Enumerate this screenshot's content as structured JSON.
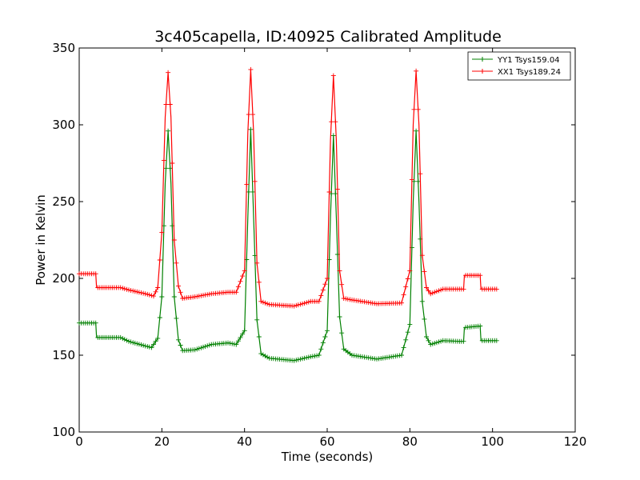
{
  "chart_data": {
    "type": "line",
    "title": "3c405capella, ID:40925 Calibrated Amplitude",
    "xlabel": "Time (seconds)",
    "ylabel": "Power in Kelvin",
    "xlim": [
      0,
      120
    ],
    "ylim": [
      100,
      350
    ],
    "xticks": [
      0,
      20,
      40,
      60,
      80,
      100,
      120
    ],
    "yticks": [
      100,
      150,
      200,
      250,
      300,
      350
    ],
    "grid": false,
    "legend_position": "top-right",
    "series": [
      {
        "name": "YY1 Tsys159.04",
        "color": "#008000",
        "marker": "+",
        "points": [
          [
            0,
            171
          ],
          [
            4,
            171
          ],
          [
            4.2,
            161.5
          ],
          [
            10,
            161.5
          ],
          [
            12,
            159
          ],
          [
            16,
            156
          ],
          [
            17.5,
            155
          ],
          [
            19,
            161
          ],
          [
            20,
            188
          ],
          [
            20.8,
            262
          ],
          [
            21.5,
            296
          ],
          [
            22.2,
            262
          ],
          [
            23,
            188
          ],
          [
            24,
            160
          ],
          [
            25,
            153
          ],
          [
            28,
            153.5
          ],
          [
            32,
            157
          ],
          [
            36,
            158
          ],
          [
            38,
            157
          ],
          [
            40,
            166
          ],
          [
            40.8,
            240
          ],
          [
            41.5,
            297
          ],
          [
            42.2,
            240
          ],
          [
            43,
            173
          ],
          [
            44,
            151
          ],
          [
            46,
            148
          ],
          [
            52,
            146.5
          ],
          [
            56,
            149
          ],
          [
            58,
            150
          ],
          [
            60,
            166
          ],
          [
            60.8,
            240
          ],
          [
            61.5,
            293
          ],
          [
            62.2,
            240
          ],
          [
            63,
            175
          ],
          [
            64,
            154
          ],
          [
            66,
            150
          ],
          [
            72,
            147.5
          ],
          [
            78,
            150
          ],
          [
            80,
            170
          ],
          [
            80.8,
            250
          ],
          [
            81.5,
            296
          ],
          [
            82.2,
            250
          ],
          [
            83,
            185
          ],
          [
            84,
            162
          ],
          [
            85,
            157
          ],
          [
            88,
            159.5
          ],
          [
            92,
            159
          ],
          [
            93,
            159
          ],
          [
            93.2,
            168
          ],
          [
            97,
            169
          ],
          [
            97.2,
            159.5
          ],
          [
            101,
            159.5
          ]
        ]
      },
      {
        "name": "XX1 Tsys189.24",
        "color": "#ff0000",
        "marker": "+",
        "points": [
          [
            0,
            203
          ],
          [
            4,
            203
          ],
          [
            4.2,
            194
          ],
          [
            10,
            194
          ],
          [
            12,
            192.5
          ],
          [
            16,
            190
          ],
          [
            18,
            188.5
          ],
          [
            19,
            194
          ],
          [
            20,
            230
          ],
          [
            20.8,
            305
          ],
          [
            21.5,
            334
          ],
          [
            22.2,
            305
          ],
          [
            23,
            225
          ],
          [
            24,
            195
          ],
          [
            25,
            187
          ],
          [
            28,
            188
          ],
          [
            32,
            190
          ],
          [
            36,
            191
          ],
          [
            38,
            191
          ],
          [
            40,
            205
          ],
          [
            40.8,
            295
          ],
          [
            41.5,
            336
          ],
          [
            42.2,
            295
          ],
          [
            43,
            210
          ],
          [
            44,
            185
          ],
          [
            46,
            183
          ],
          [
            52,
            182
          ],
          [
            56,
            185
          ],
          [
            58,
            185
          ],
          [
            60,
            200
          ],
          [
            60.8,
            290
          ],
          [
            61.5,
            332
          ],
          [
            62.2,
            290
          ],
          [
            63,
            205
          ],
          [
            64,
            187
          ],
          [
            66,
            186
          ],
          [
            72,
            183.5
          ],
          [
            78,
            184
          ],
          [
            80,
            205
          ],
          [
            80.8,
            300
          ],
          [
            81.5,
            335
          ],
          [
            82.2,
            300
          ],
          [
            83,
            215
          ],
          [
            84,
            194
          ],
          [
            85,
            190
          ],
          [
            88,
            193
          ],
          [
            92,
            193
          ],
          [
            93,
            193
          ],
          [
            93.2,
            202
          ],
          [
            97,
            202
          ],
          [
            97.2,
            193
          ],
          [
            101,
            193
          ]
        ]
      }
    ]
  }
}
